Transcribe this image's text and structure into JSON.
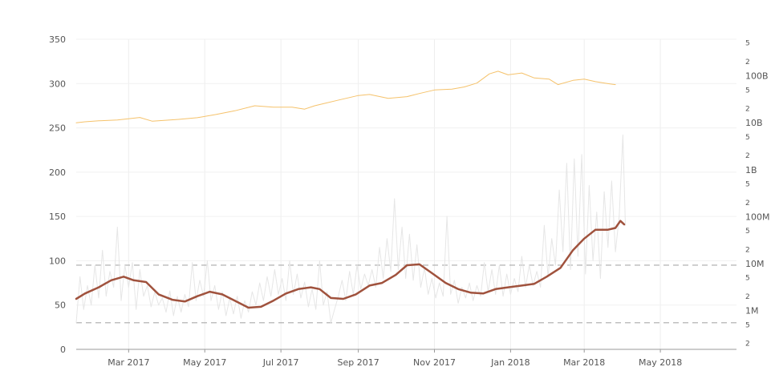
{
  "chart_data": {
    "type": "line",
    "title": "",
    "x_axis": {
      "type": "date",
      "range": [
        "2017-01-18",
        "2018-07-01"
      ],
      "ticks": [
        {
          "date": "2017-03-01",
          "label": "Mar 2017"
        },
        {
          "date": "2017-05-01",
          "label": "May 2017"
        },
        {
          "date": "2017-07-01",
          "label": "Jul 2017"
        },
        {
          "date": "2017-09-01",
          "label": "Sep 2017"
        },
        {
          "date": "2017-11-01",
          "label": "Nov 2017"
        },
        {
          "date": "2018-01-01",
          "label": "Jan 2018"
        },
        {
          "date": "2018-03-01",
          "label": "Mar 2018"
        },
        {
          "date": "2018-05-01",
          "label": "May 2018"
        }
      ]
    },
    "y_axis_left": {
      "type": "linear",
      "range": [
        0,
        350
      ],
      "ticks": [
        0,
        50,
        100,
        150,
        200,
        250,
        300,
        350
      ]
    },
    "y_axis_right": {
      "type": "log",
      "range": [
        150000,
        600000000000
      ],
      "major_ticks": [
        {
          "value": 1000000,
          "label": "1M"
        },
        {
          "value": 10000000,
          "label": "10M"
        },
        {
          "value": 100000000,
          "label": "100M"
        },
        {
          "value": 1000000000,
          "label": "1B"
        },
        {
          "value": 10000000000,
          "label": "10B"
        },
        {
          "value": 100000000000,
          "label": "100B"
        }
      ],
      "minor_ticks": [
        {
          "value": 200000,
          "label": "2"
        },
        {
          "value": 500000,
          "label": "5"
        },
        {
          "value": 2000000,
          "label": "2"
        },
        {
          "value": 5000000,
          "label": "5"
        },
        {
          "value": 20000000,
          "label": "2"
        },
        {
          "value": 50000000,
          "label": "5"
        },
        {
          "value": 200000000,
          "label": "2"
        },
        {
          "value": 500000000,
          "label": "5"
        },
        {
          "value": 2000000000,
          "label": "2"
        },
        {
          "value": 5000000000,
          "label": "5"
        },
        {
          "value": 20000000000,
          "label": "2"
        },
        {
          "value": 50000000000,
          "label": "5"
        },
        {
          "value": 200000000000,
          "label": "2"
        },
        {
          "value": 500000000000,
          "label": "5"
        }
      ]
    },
    "grid": {
      "vertical": true,
      "horizontal": true
    },
    "reference_lines": [
      {
        "axis": "left",
        "value": 95,
        "style": "dashed"
      },
      {
        "axis": "left",
        "value": 30,
        "style": "dashed"
      }
    ],
    "series": [
      {
        "axis": "right",
        "color": "#f5c26b",
        "width": 1,
        "points": [
          [
            "2017-01-18",
            10000000000.0
          ],
          [
            "2017-01-25",
            10500000000.0
          ],
          [
            "2017-02-05",
            11000000000.0
          ],
          [
            "2017-02-20",
            11500000000.0
          ],
          [
            "2017-03-10",
            13000000000.0
          ],
          [
            "2017-03-20",
            10800000000.0
          ],
          [
            "2017-04-10",
            11800000000.0
          ],
          [
            "2017-04-25",
            12800000000.0
          ],
          [
            "2017-05-10",
            15000000000.0
          ],
          [
            "2017-05-25",
            18000000000.0
          ],
          [
            "2017-06-10",
            23000000000.0
          ],
          [
            "2017-06-25",
            21500000000.0
          ],
          [
            "2017-07-10",
            21500000000.0
          ],
          [
            "2017-07-20",
            19500000000.0
          ],
          [
            "2017-07-28",
            23000000000.0
          ],
          [
            "2017-08-15",
            30000000000.0
          ],
          [
            "2017-09-01",
            38000000000.0
          ],
          [
            "2017-09-10",
            40000000000.0
          ],
          [
            "2017-09-25",
            33000000000.0
          ],
          [
            "2017-10-10",
            36000000000.0
          ],
          [
            "2017-10-20",
            42000000000.0
          ],
          [
            "2017-11-01",
            50000000000.0
          ],
          [
            "2017-11-15",
            52000000000.0
          ],
          [
            "2017-11-25",
            58000000000.0
          ],
          [
            "2017-12-05",
            70000000000.0
          ],
          [
            "2017-12-15",
            110000000000.0
          ],
          [
            "2017-12-22",
            125000000000.0
          ],
          [
            "2017-12-30",
            105000000000.0
          ],
          [
            "2018-01-10",
            115000000000.0
          ],
          [
            "2018-01-20",
            90000000000.0
          ],
          [
            "2018-02-01",
            85000000000.0
          ],
          [
            "2018-02-08",
            65000000000.0
          ],
          [
            "2018-02-20",
            80000000000.0
          ],
          [
            "2018-03-01",
            85000000000.0
          ],
          [
            "2018-03-10",
            75000000000.0
          ],
          [
            "2018-03-20",
            68000000000.0
          ],
          [
            "2018-03-26",
            65000000000.0
          ]
        ]
      },
      {
        "axis": "left",
        "color": "#e6e6e6",
        "width": 1,
        "points": [
          [
            "2017-01-18",
            30
          ],
          [
            "2017-01-21",
            82
          ],
          [
            "2017-01-24",
            45
          ],
          [
            "2017-01-27",
            72
          ],
          [
            "2017-01-30",
            50
          ],
          [
            "2017-02-02",
            95
          ],
          [
            "2017-02-05",
            58
          ],
          [
            "2017-02-08",
            112
          ],
          [
            "2017-02-11",
            60
          ],
          [
            "2017-02-14",
            88
          ],
          [
            "2017-02-17",
            70
          ],
          [
            "2017-02-20",
            138
          ],
          [
            "2017-02-23",
            55
          ],
          [
            "2017-02-26",
            95
          ],
          [
            "2017-03-01",
            70
          ],
          [
            "2017-03-04",
            98
          ],
          [
            "2017-03-07",
            45
          ],
          [
            "2017-03-10",
            90
          ],
          [
            "2017-03-13",
            60
          ],
          [
            "2017-03-16",
            72
          ],
          [
            "2017-03-19",
            48
          ],
          [
            "2017-03-22",
            65
          ],
          [
            "2017-03-25",
            50
          ],
          [
            "2017-03-28",
            58
          ],
          [
            "2017-03-31",
            42
          ],
          [
            "2017-04-03",
            66
          ],
          [
            "2017-04-06",
            38
          ],
          [
            "2017-04-09",
            60
          ],
          [
            "2017-04-12",
            42
          ],
          [
            "2017-04-15",
            62
          ],
          [
            "2017-04-18",
            48
          ],
          [
            "2017-04-21",
            98
          ],
          [
            "2017-04-24",
            55
          ],
          [
            "2017-04-27",
            78
          ],
          [
            "2017-04-30",
            60
          ],
          [
            "2017-05-03",
            100
          ],
          [
            "2017-05-06",
            55
          ],
          [
            "2017-05-09",
            72
          ],
          [
            "2017-05-12",
            45
          ],
          [
            "2017-05-15",
            65
          ],
          [
            "2017-05-18",
            38
          ],
          [
            "2017-05-21",
            58
          ],
          [
            "2017-05-24",
            40
          ],
          [
            "2017-05-27",
            60
          ],
          [
            "2017-05-30",
            35
          ],
          [
            "2017-06-02",
            55
          ],
          [
            "2017-06-05",
            42
          ],
          [
            "2017-06-08",
            65
          ],
          [
            "2017-06-11",
            50
          ],
          [
            "2017-06-14",
            75
          ],
          [
            "2017-06-17",
            55
          ],
          [
            "2017-06-20",
            82
          ],
          [
            "2017-06-23",
            60
          ],
          [
            "2017-06-26",
            90
          ],
          [
            "2017-06-29",
            62
          ],
          [
            "2017-07-02",
            80
          ],
          [
            "2017-07-05",
            55
          ],
          [
            "2017-07-08",
            100
          ],
          [
            "2017-07-11",
            62
          ],
          [
            "2017-07-14",
            85
          ],
          [
            "2017-07-17",
            58
          ],
          [
            "2017-07-20",
            76
          ],
          [
            "2017-07-23",
            48
          ],
          [
            "2017-07-26",
            68
          ],
          [
            "2017-07-29",
            45
          ],
          [
            "2017-08-01",
            100
          ],
          [
            "2017-08-04",
            50
          ],
          [
            "2017-08-07",
            65
          ],
          [
            "2017-08-10",
            30
          ],
          [
            "2017-08-13",
            45
          ],
          [
            "2017-08-16",
            60
          ],
          [
            "2017-08-19",
            78
          ],
          [
            "2017-08-22",
            55
          ],
          [
            "2017-08-25",
            88
          ],
          [
            "2017-08-28",
            62
          ],
          [
            "2017-08-31",
            95
          ],
          [
            "2017-09-03",
            68
          ],
          [
            "2017-09-06",
            85
          ],
          [
            "2017-09-09",
            72
          ],
          [
            "2017-09-12",
            90
          ],
          [
            "2017-09-15",
            70
          ],
          [
            "2017-09-18",
            115
          ],
          [
            "2017-09-21",
            80
          ],
          [
            "2017-09-24",
            125
          ],
          [
            "2017-09-27",
            88
          ],
          [
            "2017-09-30",
            170
          ],
          [
            "2017-10-03",
            90
          ],
          [
            "2017-10-06",
            138
          ],
          [
            "2017-10-09",
            80
          ],
          [
            "2017-10-12",
            130
          ],
          [
            "2017-10-15",
            78
          ],
          [
            "2017-10-18",
            118
          ],
          [
            "2017-10-21",
            70
          ],
          [
            "2017-10-24",
            92
          ],
          [
            "2017-10-27",
            62
          ],
          [
            "2017-10-30",
            80
          ],
          [
            "2017-11-02",
            58
          ],
          [
            "2017-11-05",
            75
          ],
          [
            "2017-11-08",
            60
          ],
          [
            "2017-11-11",
            150
          ],
          [
            "2017-11-14",
            62
          ],
          [
            "2017-11-17",
            78
          ],
          [
            "2017-11-20",
            52
          ],
          [
            "2017-11-23",
            70
          ],
          [
            "2017-11-26",
            58
          ],
          [
            "2017-11-29",
            75
          ],
          [
            "2017-12-02",
            55
          ],
          [
            "2017-12-05",
            72
          ],
          [
            "2017-12-08",
            60
          ],
          [
            "2017-12-11",
            98
          ],
          [
            "2017-12-14",
            65
          ],
          [
            "2017-12-17",
            90
          ],
          [
            "2017-12-20",
            62
          ],
          [
            "2017-12-23",
            95
          ],
          [
            "2017-12-26",
            60
          ],
          [
            "2017-12-29",
            85
          ],
          [
            "2018-01-01",
            62
          ],
          [
            "2018-01-04",
            80
          ],
          [
            "2018-01-07",
            65
          ],
          [
            "2018-01-10",
            105
          ],
          [
            "2018-01-13",
            70
          ],
          [
            "2018-01-16",
            95
          ],
          [
            "2018-01-19",
            72
          ],
          [
            "2018-01-22",
            88
          ],
          [
            "2018-01-25",
            70
          ],
          [
            "2018-01-28",
            140
          ],
          [
            "2018-01-31",
            82
          ],
          [
            "2018-02-03",
            125
          ],
          [
            "2018-02-06",
            95
          ],
          [
            "2018-02-09",
            180
          ],
          [
            "2018-02-12",
            110
          ],
          [
            "2018-02-15",
            210
          ],
          [
            "2018-02-18",
            90
          ],
          [
            "2018-02-21",
            215
          ],
          [
            "2018-02-24",
            105
          ],
          [
            "2018-02-27",
            220
          ],
          [
            "2018-03-02",
            85
          ],
          [
            "2018-03-05",
            185
          ],
          [
            "2018-03-08",
            100
          ],
          [
            "2018-03-11",
            155
          ],
          [
            "2018-03-14",
            80
          ],
          [
            "2018-03-17",
            178
          ],
          [
            "2018-03-20",
            115
          ],
          [
            "2018-03-23",
            190
          ],
          [
            "2018-03-26",
            110
          ],
          [
            "2018-03-29",
            150
          ],
          [
            "2018-04-01",
            242
          ],
          [
            "2018-04-03",
            140
          ]
        ]
      },
      {
        "axis": "left",
        "color": "#a0523d",
        "width": 2.5,
        "points": [
          [
            "2017-01-18",
            57
          ],
          [
            "2017-01-25",
            63
          ],
          [
            "2017-02-05",
            70
          ],
          [
            "2017-02-15",
            78
          ],
          [
            "2017-02-25",
            82
          ],
          [
            "2017-03-05",
            78
          ],
          [
            "2017-03-15",
            76
          ],
          [
            "2017-03-25",
            62
          ],
          [
            "2017-04-05",
            56
          ],
          [
            "2017-04-15",
            54
          ],
          [
            "2017-04-25",
            60
          ],
          [
            "2017-05-05",
            65
          ],
          [
            "2017-05-15",
            62
          ],
          [
            "2017-05-25",
            55
          ],
          [
            "2017-06-05",
            47
          ],
          [
            "2017-06-15",
            48
          ],
          [
            "2017-06-25",
            55
          ],
          [
            "2017-07-05",
            63
          ],
          [
            "2017-07-15",
            68
          ],
          [
            "2017-07-25",
            70
          ],
          [
            "2017-08-01",
            68
          ],
          [
            "2017-08-10",
            58
          ],
          [
            "2017-08-20",
            57
          ],
          [
            "2017-08-30",
            62
          ],
          [
            "2017-09-10",
            72
          ],
          [
            "2017-09-20",
            75
          ],
          [
            "2017-10-01",
            84
          ],
          [
            "2017-10-10",
            95
          ],
          [
            "2017-10-20",
            96
          ],
          [
            "2017-10-30",
            86
          ],
          [
            "2017-11-10",
            75
          ],
          [
            "2017-11-20",
            68
          ],
          [
            "2017-11-30",
            64
          ],
          [
            "2017-12-10",
            63
          ],
          [
            "2017-12-20",
            68
          ],
          [
            "2017-12-30",
            70
          ],
          [
            "2018-01-10",
            72
          ],
          [
            "2018-01-20",
            74
          ],
          [
            "2018-01-30",
            82
          ],
          [
            "2018-02-10",
            92
          ],
          [
            "2018-02-20",
            112
          ],
          [
            "2018-03-01",
            125
          ],
          [
            "2018-03-10",
            135
          ],
          [
            "2018-03-20",
            135
          ],
          [
            "2018-03-26",
            137
          ],
          [
            "2018-03-30",
            145
          ],
          [
            "2018-04-02",
            141
          ]
        ]
      }
    ]
  }
}
